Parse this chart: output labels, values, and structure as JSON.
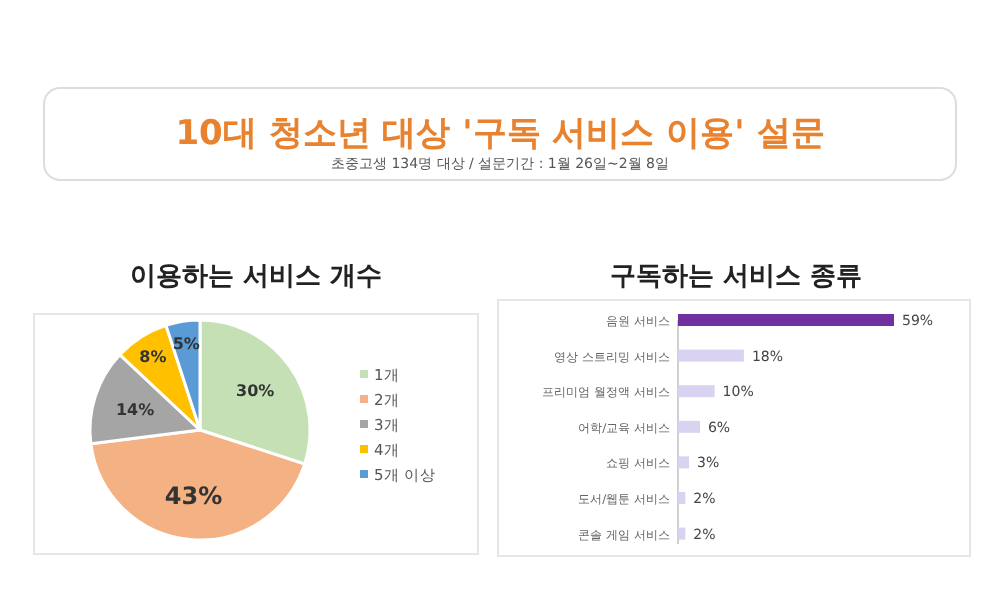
{
  "chart_data": [
    {
      "type": "pie",
      "title": "이용하는 서비스 개수",
      "annotations": [
        "10대 청소년 대상 '구독 서비스 이용' 설문",
        "초중고생 134명 대상 / 설문기간 : 1월 26일~2월 8일"
      ],
      "categories": [
        "1개",
        "2개",
        "3개",
        "4개",
        "5개 이상"
      ],
      "values": [
        30,
        43,
        14,
        8,
        5
      ],
      "colors": [
        "#c5e0b4",
        "#f4b183",
        "#a5a5a5",
        "#ffc000",
        "#5b9bd5"
      ],
      "value_labels": [
        "30%",
        "43%",
        "14%",
        "8%",
        "5%"
      ],
      "legend": "right"
    },
    {
      "type": "bar",
      "orientation": "horizontal",
      "title": "구독하는 서비스 종류",
      "categories": [
        "음원 서비스",
        "영상 스트리밍 서비스",
        "프리미엄 월정액 서비스",
        "어학/교육 서비스",
        "쇼핑 서비스",
        "도서/웹툰 서비스",
        "콘솔 게임 서비스"
      ],
      "values": [
        59,
        18,
        10,
        6,
        3,
        2,
        2
      ],
      "colors": [
        "#7030a0",
        "#d9d2f0",
        "#d9d2f0",
        "#d9d2f0",
        "#d9d2f0",
        "#d9d2f0",
        "#d9d2f0"
      ],
      "value_labels": [
        "59%",
        "18%",
        "10%",
        "6%",
        "3%",
        "2%",
        "2%"
      ]
    }
  ]
}
